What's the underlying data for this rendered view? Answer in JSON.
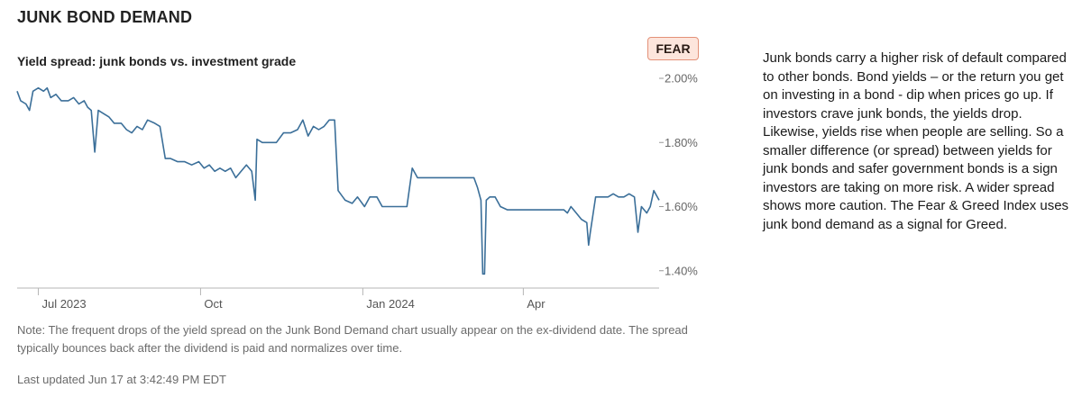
{
  "section_title": "JUNK BOND DEMAND",
  "chart_title": "Yield spread: junk bonds vs. investment grade",
  "rating": "FEAR",
  "explanation": "Junk bonds carry a higher risk of default compared to other bonds. Bond yields – or the return you get on investing in a bond - dip when prices go up. If investors crave junk bonds, the yields drop. Likewise, yields rise when people are selling. So a smaller difference (or spread) between yields for junk bonds and safer government bonds is a sign investors are taking on more risk. A wider spread shows more caution. The Fear & Greed Index uses junk bond demand as a signal for Greed.",
  "note": "Note: The frequent drops of the yield spread on the Junk Bond Demand chart usually appear on the ex-dividend date. The spread typically bounces back after the dividend is paid and normalizes over time.",
  "last_updated": "Last updated Jun 17 at 3:42:49 PM EDT",
  "colors": {
    "line": "#3b6f99",
    "badge_bg": "#fde5dc",
    "badge_border": "#e39178"
  },
  "chart_data": {
    "type": "line",
    "title": "Yield spread: junk bonds vs. investment grade",
    "xlabel": "",
    "ylabel": "",
    "x_range": [
      "2023-06-19",
      "2024-06-17"
    ],
    "ylim": [
      1.35,
      2.02
    ],
    "y_ticks": [
      {
        "value": 2.0,
        "label": "2.00%"
      },
      {
        "value": 1.8,
        "label": "1.80%"
      },
      {
        "value": 1.6,
        "label": "1.60%"
      },
      {
        "value": 1.4,
        "label": "1.40%"
      }
    ],
    "x_ticks": [
      {
        "date": "2023-07-01",
        "label": "Jul 2023"
      },
      {
        "date": "2023-10-01",
        "label": "Oct"
      },
      {
        "date": "2024-01-01",
        "label": "Jan 2024"
      },
      {
        "date": "2024-04-01",
        "label": "Apr"
      }
    ],
    "grid": false,
    "legend": "none",
    "series": [
      {
        "points": [
          [
            "2023-06-19",
            1.96
          ],
          [
            "2023-06-21",
            1.93
          ],
          [
            "2023-06-24",
            1.92
          ],
          [
            "2023-06-26",
            1.9
          ],
          [
            "2023-06-28",
            1.96
          ],
          [
            "2023-07-01",
            1.97
          ],
          [
            "2023-07-04",
            1.96
          ],
          [
            "2023-07-06",
            1.97
          ],
          [
            "2023-07-08",
            1.94
          ],
          [
            "2023-07-11",
            1.95
          ],
          [
            "2023-07-14",
            1.93
          ],
          [
            "2023-07-18",
            1.93
          ],
          [
            "2023-07-21",
            1.94
          ],
          [
            "2023-07-24",
            1.92
          ],
          [
            "2023-07-27",
            1.93
          ],
          [
            "2023-07-29",
            1.91
          ],
          [
            "2023-07-31",
            1.9
          ],
          [
            "2023-08-02",
            1.77
          ],
          [
            "2023-08-04",
            1.9
          ],
          [
            "2023-08-07",
            1.89
          ],
          [
            "2023-08-10",
            1.88
          ],
          [
            "2023-08-13",
            1.86
          ],
          [
            "2023-08-17",
            1.86
          ],
          [
            "2023-08-20",
            1.84
          ],
          [
            "2023-08-23",
            1.83
          ],
          [
            "2023-08-26",
            1.85
          ],
          [
            "2023-08-29",
            1.84
          ],
          [
            "2023-09-01",
            1.87
          ],
          [
            "2023-09-05",
            1.86
          ],
          [
            "2023-09-08",
            1.85
          ],
          [
            "2023-09-11",
            1.75
          ],
          [
            "2023-09-14",
            1.75
          ],
          [
            "2023-09-18",
            1.74
          ],
          [
            "2023-09-22",
            1.74
          ],
          [
            "2023-09-26",
            1.73
          ],
          [
            "2023-09-30",
            1.74
          ],
          [
            "2023-10-03",
            1.72
          ],
          [
            "2023-10-06",
            1.73
          ],
          [
            "2023-10-09",
            1.71
          ],
          [
            "2023-10-12",
            1.72
          ],
          [
            "2023-10-15",
            1.71
          ],
          [
            "2023-10-18",
            1.72
          ],
          [
            "2023-10-21",
            1.69
          ],
          [
            "2023-10-24",
            1.71
          ],
          [
            "2023-10-27",
            1.73
          ],
          [
            "2023-10-30",
            1.71
          ],
          [
            "2023-11-01",
            1.62
          ],
          [
            "2023-11-02",
            1.81
          ],
          [
            "2023-11-05",
            1.8
          ],
          [
            "2023-11-09",
            1.8
          ],
          [
            "2023-11-13",
            1.8
          ],
          [
            "2023-11-17",
            1.83
          ],
          [
            "2023-11-21",
            1.83
          ],
          [
            "2023-11-25",
            1.84
          ],
          [
            "2023-11-28",
            1.87
          ],
          [
            "2023-12-01",
            1.82
          ],
          [
            "2023-12-04",
            1.85
          ],
          [
            "2023-12-07",
            1.84
          ],
          [
            "2023-12-10",
            1.85
          ],
          [
            "2023-12-13",
            1.87
          ],
          [
            "2023-12-16",
            1.87
          ],
          [
            "2023-12-18",
            1.65
          ],
          [
            "2023-12-22",
            1.62
          ],
          [
            "2023-12-26",
            1.61
          ],
          [
            "2023-12-29",
            1.63
          ],
          [
            "2024-01-02",
            1.6
          ],
          [
            "2024-01-05",
            1.63
          ],
          [
            "2024-01-09",
            1.63
          ],
          [
            "2024-01-12",
            1.6
          ],
          [
            "2024-01-16",
            1.6
          ],
          [
            "2024-01-22",
            1.6
          ],
          [
            "2024-01-26",
            1.6
          ],
          [
            "2024-01-29",
            1.72
          ],
          [
            "2024-02-01",
            1.69
          ],
          [
            "2024-02-10",
            1.69
          ],
          [
            "2024-02-20",
            1.69
          ],
          [
            "2024-02-28",
            1.69
          ],
          [
            "2024-03-04",
            1.69
          ],
          [
            "2024-03-06",
            1.66
          ],
          [
            "2024-03-08",
            1.62
          ],
          [
            "2024-03-09",
            1.39
          ],
          [
            "2024-03-10",
            1.39
          ],
          [
            "2024-03-11",
            1.62
          ],
          [
            "2024-03-13",
            1.63
          ],
          [
            "2024-03-16",
            1.63
          ],
          [
            "2024-03-19",
            1.6
          ],
          [
            "2024-03-23",
            1.59
          ],
          [
            "2024-03-29",
            1.59
          ],
          [
            "2024-04-05",
            1.59
          ],
          [
            "2024-04-12",
            1.59
          ],
          [
            "2024-04-19",
            1.59
          ],
          [
            "2024-04-24",
            1.59
          ],
          [
            "2024-04-26",
            1.58
          ],
          [
            "2024-04-28",
            1.6
          ],
          [
            "2024-05-01",
            1.58
          ],
          [
            "2024-05-04",
            1.56
          ],
          [
            "2024-05-07",
            1.55
          ],
          [
            "2024-05-08",
            1.48
          ],
          [
            "2024-05-09",
            1.52
          ],
          [
            "2024-05-12",
            1.63
          ],
          [
            "2024-05-15",
            1.63
          ],
          [
            "2024-05-19",
            1.63
          ],
          [
            "2024-05-22",
            1.64
          ],
          [
            "2024-05-25",
            1.63
          ],
          [
            "2024-05-28",
            1.63
          ],
          [
            "2024-05-31",
            1.64
          ],
          [
            "2024-06-03",
            1.63
          ],
          [
            "2024-06-05",
            1.52
          ],
          [
            "2024-06-07",
            1.6
          ],
          [
            "2024-06-10",
            1.58
          ],
          [
            "2024-06-12",
            1.6
          ],
          [
            "2024-06-14",
            1.65
          ],
          [
            "2024-06-17",
            1.62
          ]
        ]
      }
    ]
  }
}
